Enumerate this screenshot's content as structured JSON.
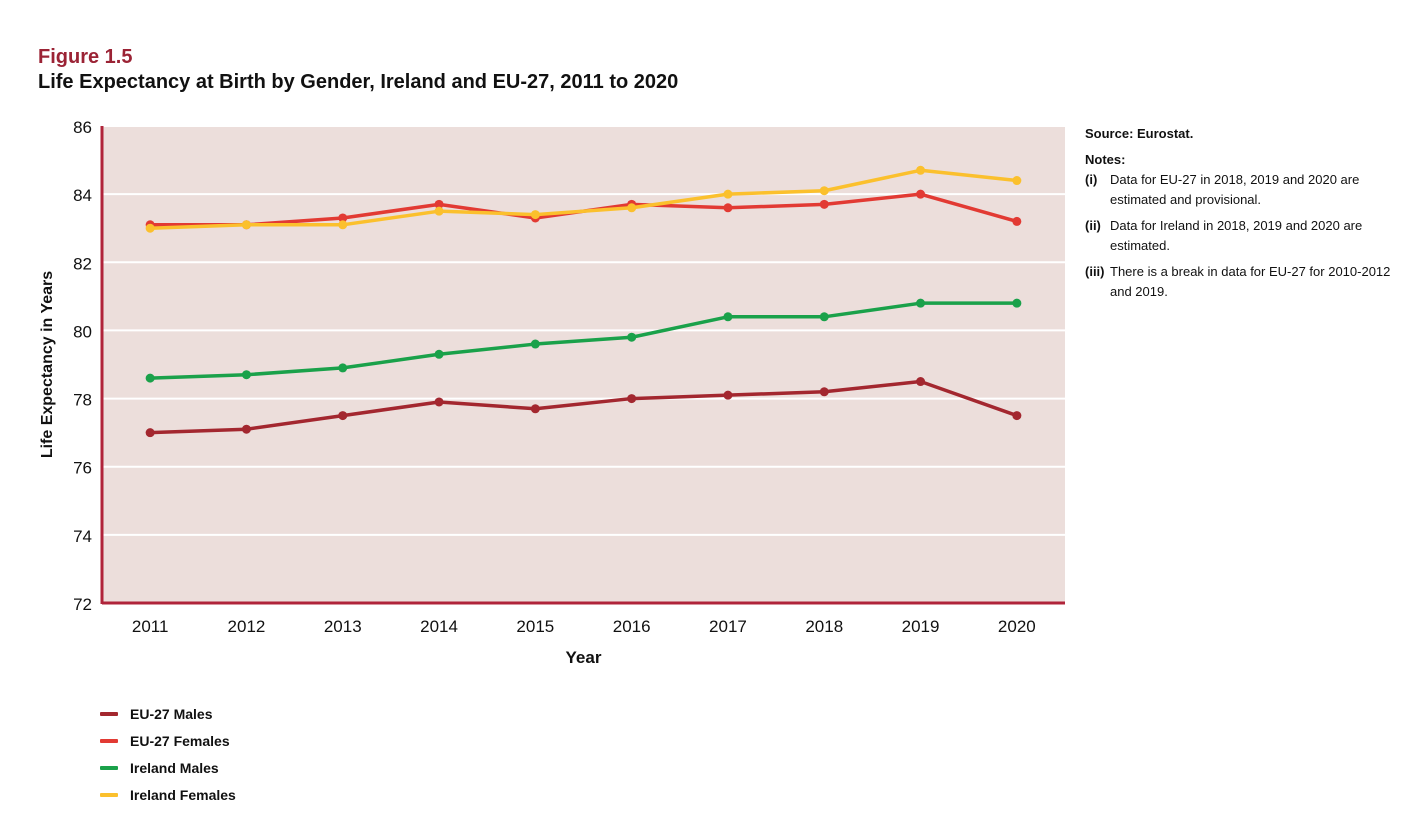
{
  "figure": {
    "label": "Figure 1.5",
    "title": "Life Expectancy at Birth by Gender, Ireland and EU-27, 2011 to 2020"
  },
  "side_notes": {
    "source": "Source: Eurostat.",
    "notes_title": "Notes:",
    "notes": [
      {
        "num": "(i)",
        "text": "Data for EU-27 in 2018, 2019 and 2020 are estimated and provisional."
      },
      {
        "num": "(ii)",
        "text": "Data for Ireland in 2018, 2019 and 2020 are estimated."
      },
      {
        "num": "(iii)",
        "text": "There is a break in data for EU-27 for 2010-2012 and 2019."
      }
    ]
  },
  "colors": {
    "plot_background": "#ecdedb",
    "axis": "#b0243a",
    "gridline": "#ffffff"
  },
  "chart_data": {
    "type": "line",
    "xlabel": "Year",
    "ylabel": "Life Expectancy in Years",
    "ylim": [
      72,
      86
    ],
    "yticks": [
      "72",
      "74",
      "76",
      "78",
      "80",
      "82",
      "84",
      "86"
    ],
    "categories": [
      "2011",
      "2012",
      "2013",
      "2014",
      "2015",
      "2016",
      "2017",
      "2018",
      "2019",
      "2020"
    ],
    "grid": true,
    "legend_position": "bottom-left",
    "series": [
      {
        "name": "EU-27 Males",
        "color": "#a3272f",
        "values": [
          77.0,
          77.1,
          77.5,
          77.9,
          77.7,
          78.0,
          78.1,
          78.2,
          78.5,
          77.5
        ]
      },
      {
        "name": "EU-27 Females",
        "color": "#e23a33",
        "values": [
          83.1,
          83.1,
          83.3,
          83.7,
          83.3,
          83.7,
          83.6,
          83.7,
          84.0,
          83.2
        ]
      },
      {
        "name": "Ireland Males",
        "color": "#1aa14a",
        "values": [
          78.6,
          78.7,
          78.9,
          79.3,
          79.6,
          79.8,
          80.4,
          80.4,
          80.8,
          80.8
        ]
      },
      {
        "name": "Ireland Females",
        "color": "#fbc02d",
        "values": [
          83.0,
          83.1,
          83.1,
          83.5,
          83.4,
          83.6,
          84.0,
          84.1,
          84.7,
          84.4
        ]
      }
    ]
  }
}
